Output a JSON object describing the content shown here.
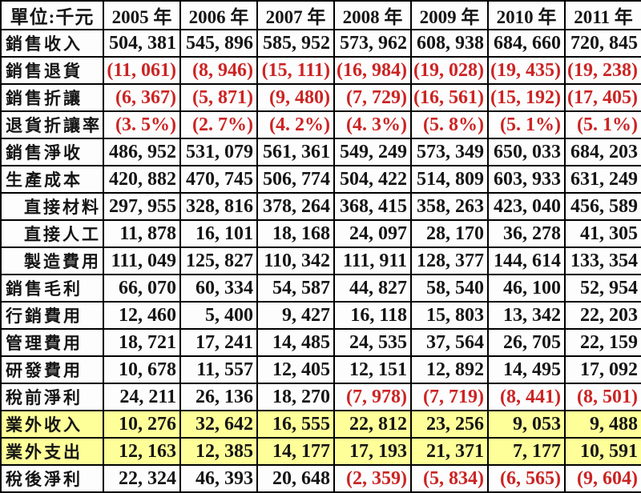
{
  "unit_header": "單位:千元",
  "year_headers": [
    "2005 年",
    "2006 年",
    "2007 年",
    "2008 年",
    "2009 年",
    "2010 年",
    "2011 年"
  ],
  "rows": [
    {
      "label": "銷售收入",
      "indent": false,
      "highlight": false,
      "values": [
        "504, 381",
        "545, 896",
        "585, 952",
        "573, 962",
        "608, 938",
        "684, 660",
        "720, 845"
      ]
    },
    {
      "label": "銷售退貨",
      "indent": false,
      "highlight": false,
      "values": [
        "(11, 061)",
        "(8, 946)",
        "(15, 111)",
        "(16, 984)",
        "(19, 028)",
        "(19, 435)",
        "(19, 238)"
      ]
    },
    {
      "label": "銷售折讓",
      "indent": false,
      "highlight": false,
      "values": [
        "(6, 367)",
        "(5, 871)",
        "(9, 480)",
        "(7, 729)",
        "(16, 561)",
        "(15, 192)",
        "(17, 405)"
      ]
    },
    {
      "label": "退貨折讓率",
      "indent": false,
      "highlight": false,
      "values": [
        "(3. 5%)",
        "(2. 7%)",
        "(4. 2%)",
        "(4. 3%)",
        "(5. 8%)",
        "(5. 1%)",
        "(5. 1%)"
      ]
    },
    {
      "label": "銷售淨收",
      "indent": false,
      "highlight": false,
      "values": [
        "486, 952",
        "531, 079",
        "561, 361",
        "549, 249",
        "573, 349",
        "650, 033",
        "684, 203"
      ]
    },
    {
      "label": "生產成本",
      "indent": false,
      "highlight": false,
      "values": [
        "420, 882",
        "470, 745",
        "506, 774",
        "504, 422",
        "514, 809",
        "603, 933",
        "631, 249"
      ]
    },
    {
      "label": "直接材料",
      "indent": true,
      "highlight": false,
      "values": [
        "297, 955",
        "328, 816",
        "378, 264",
        "368, 415",
        "358, 263",
        "423, 040",
        "456, 589"
      ]
    },
    {
      "label": "直接人工",
      "indent": true,
      "highlight": false,
      "values": [
        "11, 878",
        "16, 101",
        "18, 168",
        "24, 097",
        "28, 170",
        "36, 278",
        "41, 305"
      ]
    },
    {
      "label": "製造費用",
      "indent": true,
      "highlight": false,
      "values": [
        "111, 049",
        "125, 827",
        "110, 342",
        "111, 911",
        "128, 377",
        "144, 614",
        "133, 354"
      ]
    },
    {
      "label": "銷售毛利",
      "indent": false,
      "highlight": false,
      "values": [
        "66, 070",
        "60, 334",
        "54, 587",
        "44, 827",
        "58, 540",
        "46, 100",
        "52, 954"
      ]
    },
    {
      "label": "行銷費用",
      "indent": false,
      "highlight": false,
      "values": [
        "12, 460",
        "5, 400",
        "9, 427",
        "16, 118",
        "15, 803",
        "13, 342",
        "22, 203"
      ]
    },
    {
      "label": "管理費用",
      "indent": false,
      "highlight": false,
      "values": [
        "18, 721",
        "17, 241",
        "14, 485",
        "24, 535",
        "37, 564",
        "26, 705",
        "22, 159"
      ]
    },
    {
      "label": "研發費用",
      "indent": false,
      "highlight": false,
      "values": [
        "10, 678",
        "11, 557",
        "12, 405",
        "12, 151",
        "12, 892",
        "14, 495",
        "17, 092"
      ]
    },
    {
      "label": "稅前淨利",
      "indent": false,
      "highlight": false,
      "values": [
        "24, 211",
        "26, 136",
        "18, 270",
        "(7, 978)",
        "(7, 719)",
        "(8, 441)",
        "(8, 501)"
      ]
    },
    {
      "label": "業外收入",
      "indent": false,
      "highlight": true,
      "values": [
        "10, 276",
        "32, 642",
        "16, 555",
        "22, 812",
        "23, 256",
        "9, 053",
        "9, 488"
      ]
    },
    {
      "label": "業外支出",
      "indent": false,
      "highlight": true,
      "values": [
        "12, 163",
        "12, 385",
        "14, 177",
        "17, 193",
        "21, 371",
        "7, 177",
        "10, 591"
      ]
    },
    {
      "label": "稅後淨利",
      "indent": false,
      "highlight": false,
      "values": [
        "22, 324",
        "46, 393",
        "20, 648",
        "(2, 359)",
        "(5, 834)",
        "(6, 565)",
        "(9, 604)"
      ]
    }
  ],
  "colors": {
    "negative_text": "#cc2424",
    "highlight_row_bg": "#ffff99",
    "text": "#151515",
    "border": "#000000",
    "background": "#fdfdfd"
  }
}
